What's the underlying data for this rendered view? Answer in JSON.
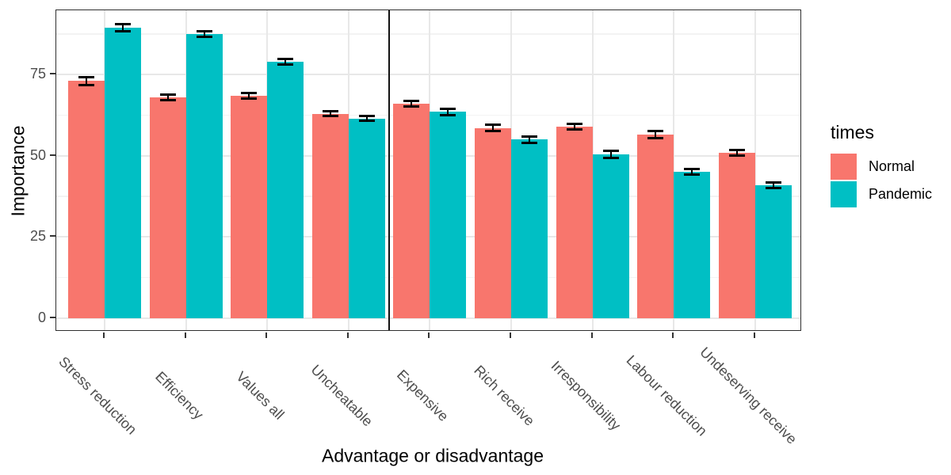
{
  "chart_data": {
    "type": "bar",
    "title": "",
    "xlabel": "Advantage or disadvantage",
    "ylabel": "Importance",
    "legend_title": "times",
    "legend_position": "right",
    "grid": true,
    "categories": [
      "Stress reduction",
      "Efficiency",
      "Values all",
      "Uncheatable",
      "Expensive",
      "Rich receive",
      "Irresponsibility",
      "Labour reduction",
      "Undeserving receive"
    ],
    "series": [
      {
        "name": "Normal",
        "color": "#F8766D",
        "values": [
          73,
          68,
          68.5,
          63,
          66,
          58.5,
          59,
          56.5,
          51
        ],
        "errors": [
          1.3,
          1.0,
          1.0,
          0.9,
          1.0,
          1.1,
          1.0,
          1.2,
          1.0
        ]
      },
      {
        "name": "Pandemic",
        "color": "#00BFC4",
        "values": [
          89.5,
          87.5,
          79,
          61.5,
          63.5,
          55,
          50.5,
          45,
          41
        ],
        "errors": [
          1.2,
          0.9,
          1.0,
          0.9,
          1.2,
          1.1,
          1.2,
          1.0,
          1.0
        ]
      }
    ],
    "yticks": [
      0,
      25,
      50,
      75
    ],
    "ylim": [
      0,
      94.8
    ],
    "separator_after_index": 3,
    "error_bars": true
  },
  "colors": {
    "normal_bar": "#F8766D",
    "pandemic_bar": "#00BFC4",
    "grid_major": "#e8e8e8",
    "grid_minor": "#f3f3f3",
    "panel_border": "#2f2f2f",
    "axis_text": "#4d4d4d",
    "error_bar": "#000000",
    "separator": "#121212"
  }
}
